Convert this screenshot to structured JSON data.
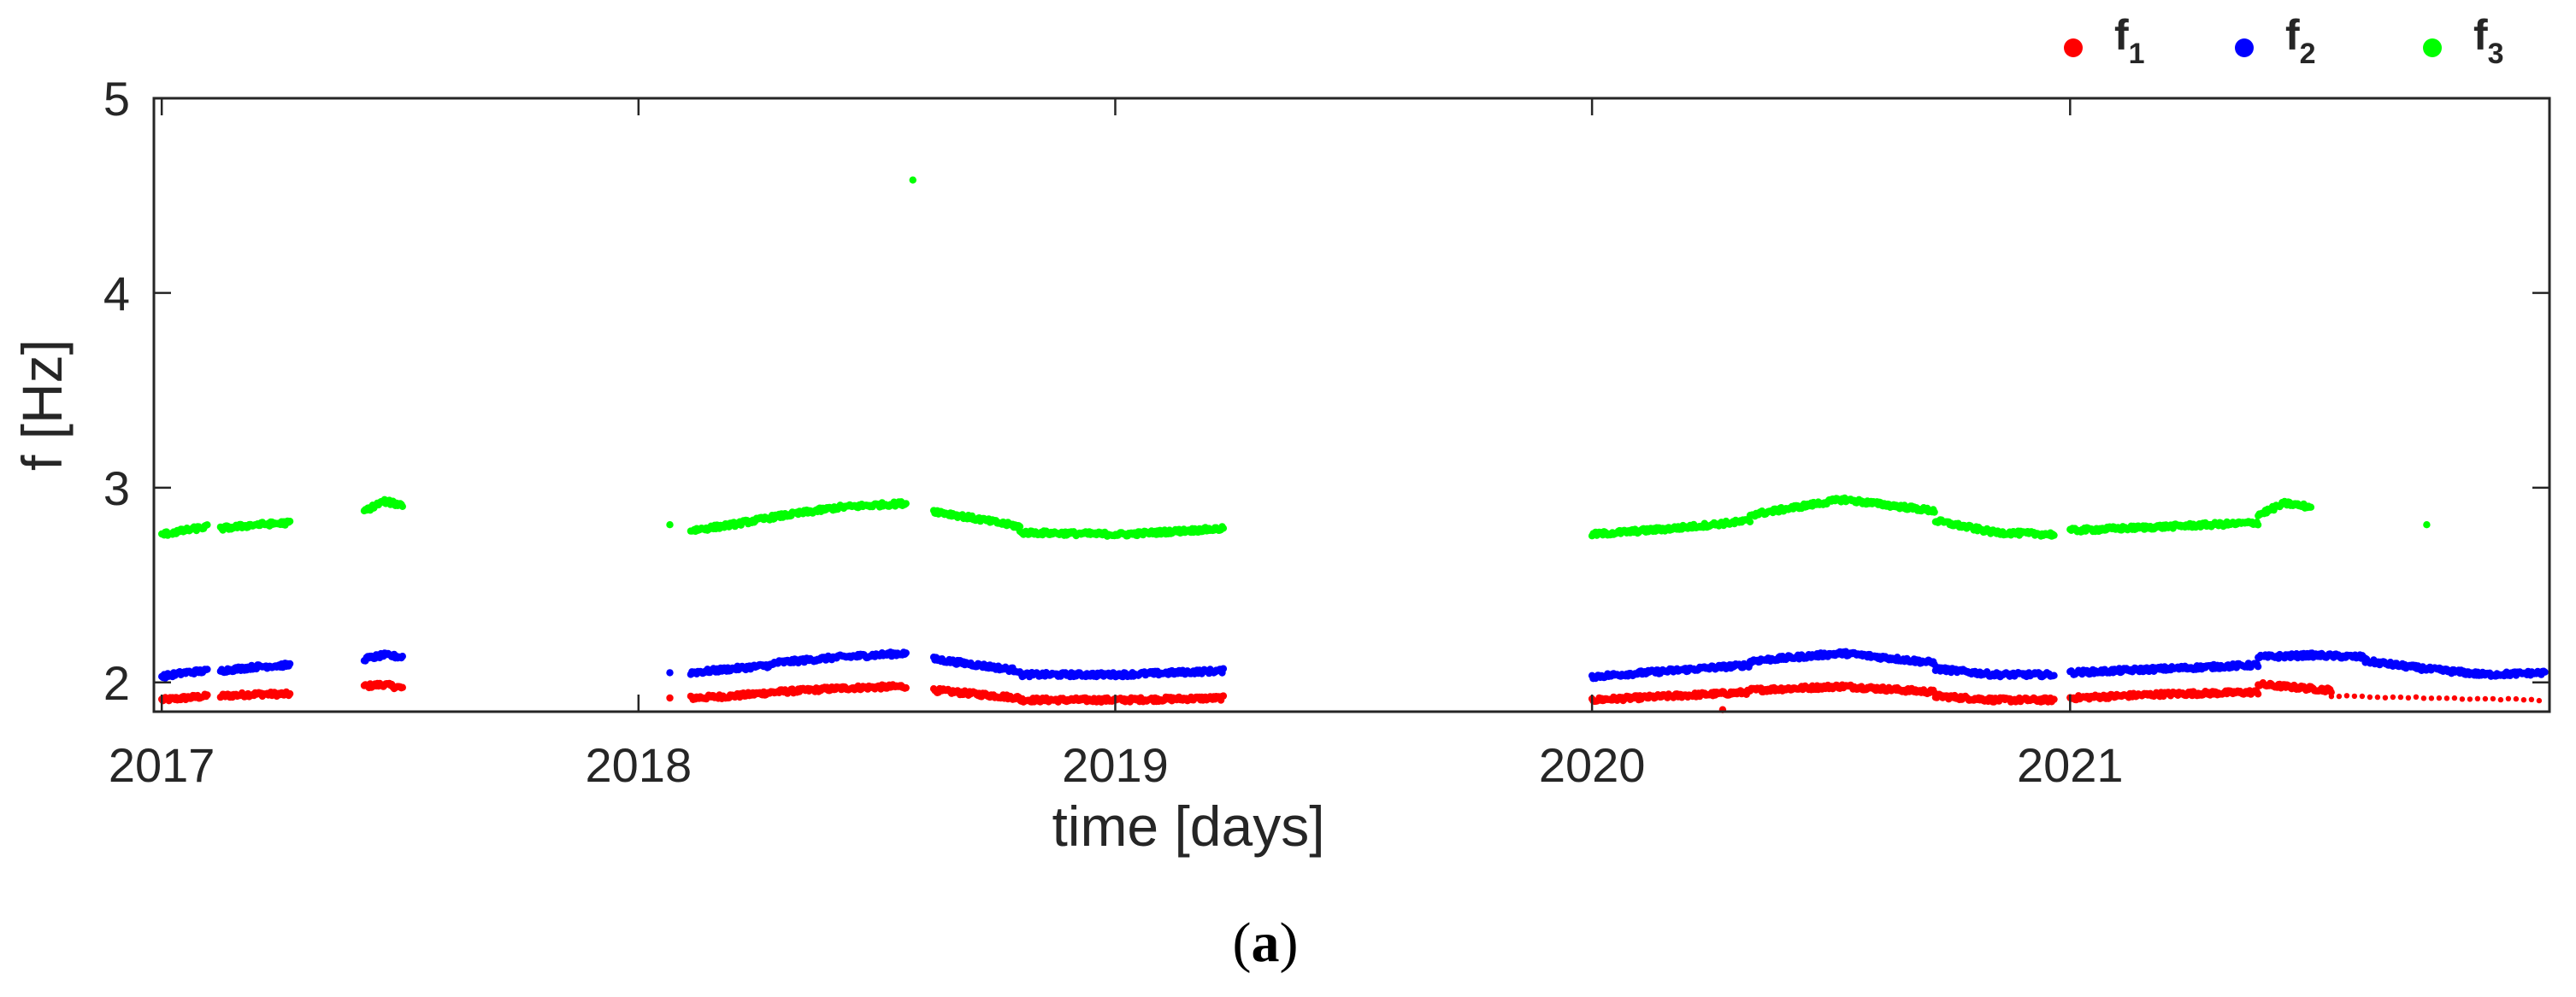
{
  "chart_data": {
    "type": "scatter",
    "xlabel": "time [days]",
    "ylabel": "f [Hz]",
    "xlim": [
      "2016-12-26",
      "2022-01-03"
    ],
    "ylim": [
      1.85,
      5
    ],
    "x_ticks": [
      "2017",
      "2018",
      "2019",
      "2020",
      "2021"
    ],
    "y_ticks": [
      "2",
      "3",
      "4",
      "5"
    ],
    "legend_position": "top-right",
    "grid": false,
    "caption": {
      "open": "(",
      "letter": "a",
      "close": ")"
    },
    "series": [
      {
        "name": "f",
        "subscript": "1",
        "color": "#ff0000",
        "segments": [
          {
            "start": "2017-01-01",
            "end": "2017-02-05",
            "values": [
              1.91,
              1.92,
              1.93
            ]
          },
          {
            "start": "2017-02-15",
            "end": "2017-04-10",
            "values": [
              1.93,
              1.94,
              1.94
            ]
          },
          {
            "start": "2017-06-05",
            "end": "2017-07-05",
            "values": [
              1.98,
              1.99,
              1.97
            ]
          },
          {
            "start": "2018-02-10",
            "end": "2018-04-15",
            "values": [
              1.92,
              1.93,
              1.95
            ]
          },
          {
            "start": "2018-04-15",
            "end": "2018-07-25",
            "values": [
              1.95,
              1.97,
              1.98
            ]
          },
          {
            "start": "2018-08-15",
            "end": "2018-10-20",
            "values": [
              1.96,
              1.94,
              1.92
            ]
          },
          {
            "start": "2018-10-20",
            "end": "2019-03-25",
            "values": [
              1.91,
              1.91,
              1.92
            ]
          },
          {
            "start": "2020-01-01",
            "end": "2020-05-01",
            "values": [
              1.91,
              1.93,
              1.95
            ]
          },
          {
            "start": "2020-05-01",
            "end": "2020-09-20",
            "values": [
              1.96,
              1.98,
              1.95
            ]
          },
          {
            "start": "2020-09-20",
            "end": "2020-12-20",
            "values": [
              1.93,
              1.91,
              1.91
            ]
          },
          {
            "start": "2021-01-01",
            "end": "2021-05-25",
            "values": [
              1.92,
              1.94,
              1.95
            ]
          },
          {
            "start": "2021-05-25",
            "end": "2021-07-20",
            "values": [
              1.99,
              1.96
            ]
          },
          {
            "start": "2021-07-20",
            "end": "2021-12-31",
            "values": [
              1.93,
              1.92,
              1.91
            ],
            "sparse": true
          }
        ],
        "points": [
          [
            "2018-01-25",
            1.92
          ],
          [
            "2020-04-10",
            1.86
          ]
        ]
      },
      {
        "name": "f",
        "subscript": "2",
        "color": "#0000ff",
        "segments": [
          {
            "start": "2017-01-01",
            "end": "2017-02-05",
            "values": [
              2.03,
              2.05,
              2.06
            ]
          },
          {
            "start": "2017-02-15",
            "end": "2017-04-10",
            "values": [
              2.06,
              2.08,
              2.09
            ]
          },
          {
            "start": "2017-06-05",
            "end": "2017-07-05",
            "values": [
              2.12,
              2.14,
              2.13
            ]
          },
          {
            "start": "2018-02-10",
            "end": "2018-04-15",
            "values": [
              2.05,
              2.07,
              2.09
            ]
          },
          {
            "start": "2018-04-15",
            "end": "2018-07-25",
            "values": [
              2.1,
              2.13,
              2.15
            ]
          },
          {
            "start": "2018-08-15",
            "end": "2018-10-20",
            "values": [
              2.12,
              2.09,
              2.06
            ]
          },
          {
            "start": "2018-10-20",
            "end": "2019-03-25",
            "values": [
              2.04,
              2.04,
              2.06
            ]
          },
          {
            "start": "2020-01-01",
            "end": "2020-05-01",
            "values": [
              2.03,
              2.06,
              2.09
            ]
          },
          {
            "start": "2020-05-01",
            "end": "2020-09-20",
            "values": [
              2.11,
              2.15,
              2.1
            ]
          },
          {
            "start": "2020-09-20",
            "end": "2020-12-20",
            "values": [
              2.07,
              2.04,
              2.04
            ]
          },
          {
            "start": "2021-01-01",
            "end": "2021-05-25",
            "values": [
              2.05,
              2.07,
              2.09
            ]
          },
          {
            "start": "2021-05-25",
            "end": "2021-08-15",
            "values": [
              2.13,
              2.14,
              2.13
            ]
          },
          {
            "start": "2021-08-15",
            "end": "2021-12-31",
            "values": [
              2.11,
              2.07,
              2.04,
              2.05
            ]
          }
        ],
        "points": [
          [
            "2018-01-25",
            2.05
          ]
        ]
      },
      {
        "name": "f",
        "subscript": "3",
        "color": "#00ff00",
        "segments": [
          {
            "start": "2017-01-01",
            "end": "2017-02-05",
            "values": [
              2.76,
              2.78,
              2.8
            ]
          },
          {
            "start": "2017-02-15",
            "end": "2017-04-10",
            "values": [
              2.79,
              2.81,
              2.82
            ]
          },
          {
            "start": "2017-06-05",
            "end": "2017-07-05",
            "values": [
              2.88,
              2.93,
              2.91
            ]
          },
          {
            "start": "2018-02-10",
            "end": "2018-04-15",
            "values": [
              2.78,
              2.81,
              2.85
            ]
          },
          {
            "start": "2018-04-15",
            "end": "2018-07-25",
            "values": [
              2.85,
              2.9,
              2.92
            ]
          },
          {
            "start": "2018-08-15",
            "end": "2018-10-20",
            "values": [
              2.88,
              2.84,
              2.8
            ]
          },
          {
            "start": "2018-10-20",
            "end": "2019-03-25",
            "values": [
              2.77,
              2.76,
              2.79
            ]
          },
          {
            "start": "2020-01-01",
            "end": "2020-05-01",
            "values": [
              2.76,
              2.79,
              2.83
            ]
          },
          {
            "start": "2020-05-01",
            "end": "2020-09-20",
            "values": [
              2.86,
              2.94,
              2.88
            ]
          },
          {
            "start": "2020-09-20",
            "end": "2020-12-20",
            "values": [
              2.83,
              2.77,
              2.76
            ]
          },
          {
            "start": "2021-01-01",
            "end": "2021-05-25",
            "values": [
              2.78,
              2.8,
              2.82
            ]
          },
          {
            "start": "2021-05-25",
            "end": "2021-07-05",
            "values": [
              2.86,
              2.92,
              2.9
            ]
          }
        ],
        "points": [
          [
            "2018-01-25",
            2.81
          ],
          [
            "2018-07-30",
            4.58
          ],
          [
            "2021-10-01",
            2.81
          ]
        ]
      }
    ]
  }
}
